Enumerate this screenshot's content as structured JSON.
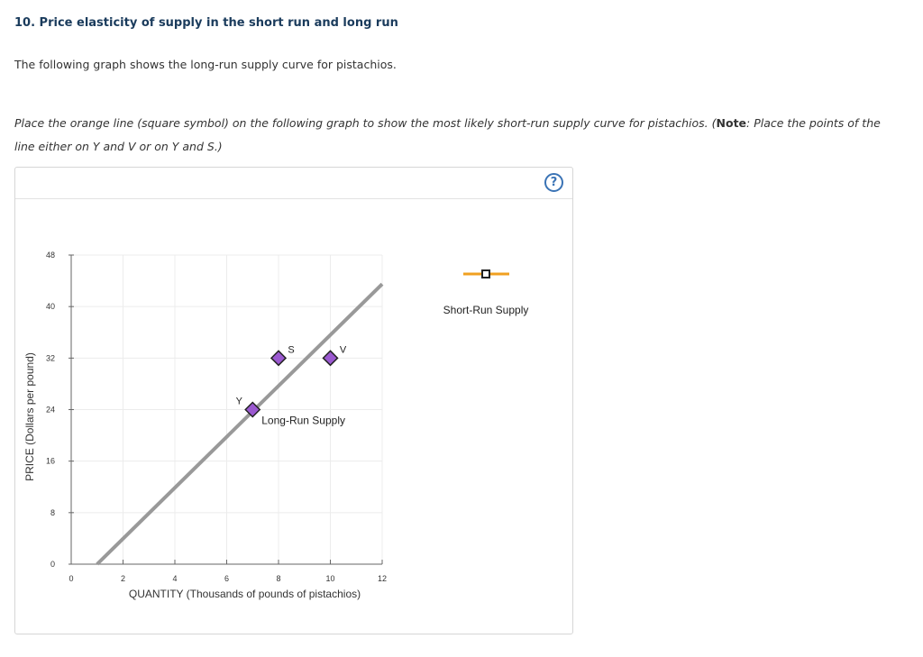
{
  "question": {
    "title": "10. Price elasticity of supply in the short run and long run",
    "intro": "The following graph shows the long-run supply curve for pistachios.",
    "instruction_part1": "Place the orange line (square symbol) on the following graph to show the most likely short-run supply curve for pistachios. (",
    "instruction_note": "Note",
    "instruction_part2": ": Place the points of the line either on Y and V or on Y and S.)"
  },
  "help": {
    "label": "?"
  },
  "palette": {
    "title_color": "#1a3b5c",
    "long_run_line": "#999999",
    "point_fill": "#9b59d0",
    "tool_line": "#f0a020",
    "help_color": "#3a73b5"
  },
  "tool": {
    "label": "Short-Run Supply",
    "icon": "square-marker-icon"
  },
  "chart_data": {
    "type": "line",
    "xlabel": "QUANTITY (Thousands of pounds of pistachios)",
    "ylabel": "PRICE (Dollars per pound)",
    "xlim": [
      0,
      12
    ],
    "ylim": [
      0,
      48
    ],
    "x_ticks": [
      0,
      2,
      4,
      6,
      8,
      10,
      12
    ],
    "y_ticks": [
      0,
      8,
      16,
      24,
      32,
      40,
      48
    ],
    "grid": true,
    "series": [
      {
        "name": "Long-Run Supply",
        "x": [
          1,
          12
        ],
        "y": [
          0,
          43.5
        ]
      }
    ],
    "points": [
      {
        "label": "Y",
        "x": 7,
        "y": 24
      },
      {
        "label": "S",
        "x": 8,
        "y": 32
      },
      {
        "label": "V",
        "x": 10,
        "y": 32
      }
    ]
  }
}
